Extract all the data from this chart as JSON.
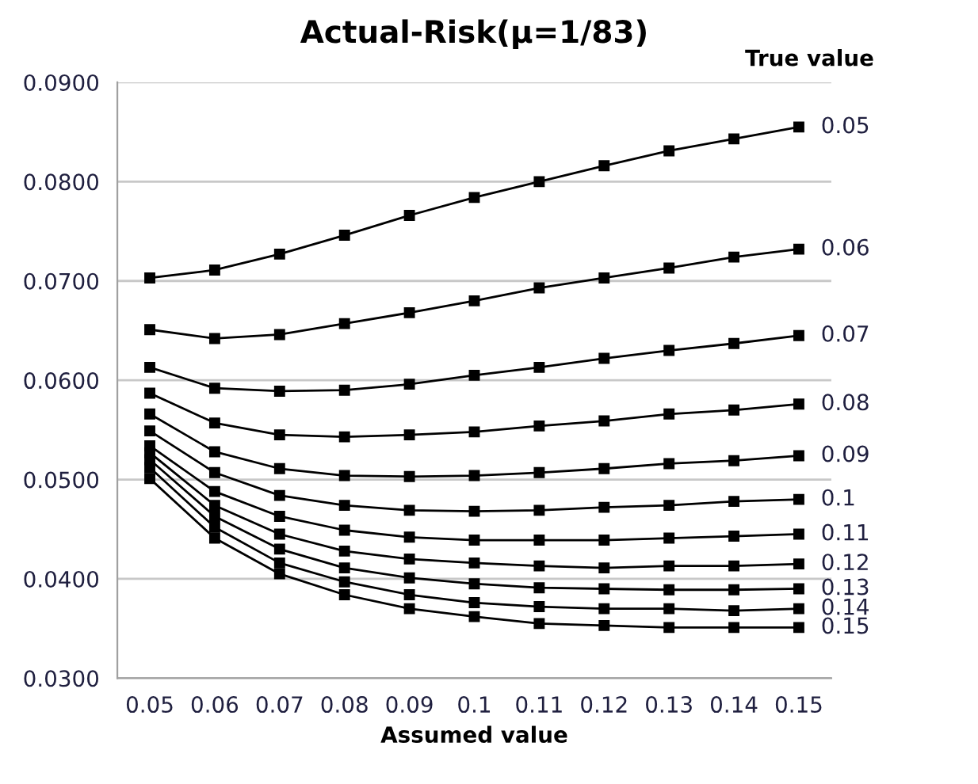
{
  "chart_data": {
    "type": "line",
    "title": "Actual-Risk(μ=1/83)",
    "xlabel": "Assumed value",
    "legend_title": "True value",
    "categories": [
      "0.05",
      "0.06",
      "0.07",
      "0.08",
      "0.09",
      "0.1",
      "0.11",
      "0.12",
      "0.13",
      "0.14",
      "0.15"
    ],
    "ylim": [
      0.03,
      0.09
    ],
    "yticks": [
      {
        "value": 0.03,
        "label": "0.0300"
      },
      {
        "value": 0.04,
        "label": "0.0400"
      },
      {
        "value": 0.05,
        "label": "0.0500"
      },
      {
        "value": 0.06,
        "label": "0.0600"
      },
      {
        "value": 0.07,
        "label": "0.0700"
      },
      {
        "value": 0.08,
        "label": "0.0800"
      },
      {
        "value": 0.09,
        "label": "0.0900"
      }
    ],
    "grid": "y",
    "legend": false,
    "marker": "square",
    "line_style": "solid",
    "series": [
      {
        "name": "0.05",
        "color": "#000000",
        "values": [
          0.0703,
          0.0711,
          0.0727,
          0.0746,
          0.0766,
          0.0784,
          0.08,
          0.0816,
          0.0831,
          0.0843,
          0.0855
        ]
      },
      {
        "name": "0.06",
        "color": "#000000",
        "values": [
          0.0651,
          0.0642,
          0.0646,
          0.0657,
          0.0668,
          0.068,
          0.0693,
          0.0703,
          0.0713,
          0.0724,
          0.0732
        ]
      },
      {
        "name": "0.07",
        "color": "#000000",
        "values": [
          0.0613,
          0.0592,
          0.0589,
          0.059,
          0.0596,
          0.0605,
          0.0613,
          0.0622,
          0.063,
          0.0637,
          0.0645
        ]
      },
      {
        "name": "0.08",
        "color": "#000000",
        "values": [
          0.0587,
          0.0557,
          0.0545,
          0.0543,
          0.0545,
          0.0548,
          0.0554,
          0.0559,
          0.0566,
          0.057,
          0.0576
        ]
      },
      {
        "name": "0.09",
        "color": "#000000",
        "values": [
          0.0566,
          0.0528,
          0.0511,
          0.0504,
          0.0503,
          0.0504,
          0.0507,
          0.0511,
          0.0516,
          0.0519,
          0.0524
        ]
      },
      {
        "name": "0.1",
        "color": "#000000",
        "values": [
          0.0549,
          0.0507,
          0.0484,
          0.0474,
          0.0469,
          0.0468,
          0.0469,
          0.0472,
          0.0474,
          0.0478,
          0.048
        ]
      },
      {
        "name": "0.11",
        "color": "#000000",
        "values": [
          0.0534,
          0.0488,
          0.0463,
          0.0449,
          0.0442,
          0.0439,
          0.0439,
          0.0439,
          0.0441,
          0.0443,
          0.0445
        ]
      },
      {
        "name": "0.12",
        "color": "#000000",
        "values": [
          0.0527,
          0.0474,
          0.0445,
          0.0428,
          0.042,
          0.0416,
          0.0413,
          0.0411,
          0.0413,
          0.0413,
          0.0415
        ]
      },
      {
        "name": "0.13",
        "color": "#000000",
        "values": [
          0.052,
          0.0463,
          0.043,
          0.0411,
          0.0401,
          0.0395,
          0.0391,
          0.039,
          0.0389,
          0.0389,
          0.039
        ]
      },
      {
        "name": "0.14",
        "color": "#000000",
        "values": [
          0.0512,
          0.0452,
          0.0416,
          0.0397,
          0.0384,
          0.0376,
          0.0372,
          0.037,
          0.037,
          0.0368,
          0.037
        ]
      },
      {
        "name": "0.15",
        "color": "#000000",
        "values": [
          0.0501,
          0.0441,
          0.0405,
          0.0384,
          0.037,
          0.0362,
          0.0355,
          0.0353,
          0.0351,
          0.0351,
          0.0351
        ]
      }
    ]
  }
}
